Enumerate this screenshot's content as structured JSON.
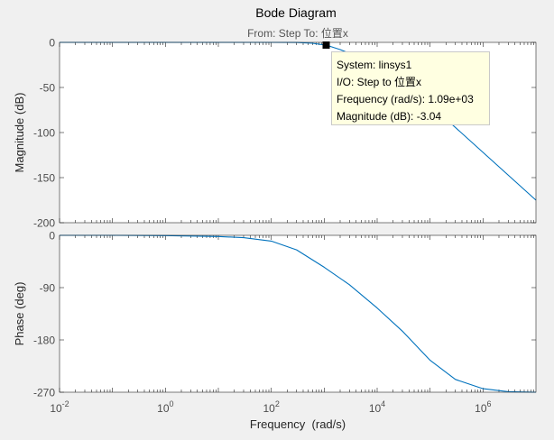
{
  "title": "Bode Diagram",
  "subtitle": "From: Step  To: 位置x",
  "colors": {
    "line": "#0072bd",
    "background": "#f0f0f0",
    "tooltip": "#ffffe1"
  },
  "chart_data": [
    {
      "type": "line",
      "name": "magnitude",
      "ylabel": "Magnitude (dB)",
      "xscale": "log",
      "xlim": [
        0.01,
        10000000
      ],
      "ylim": [
        -200,
        0
      ],
      "yticks": [
        0,
        -50,
        -100,
        -150,
        -200
      ],
      "ytick_labels": [
        "0",
        "-50",
        "-100",
        "-150",
        "-200"
      ],
      "grid": false,
      "series": [
        {
          "x": [
            0.01,
            0.1,
            1,
            10,
            100,
            300,
            600,
            1000,
            1090,
            2000,
            4000,
            10000,
            100000,
            1000000,
            10000000
          ],
          "y": [
            0,
            0,
            0,
            0,
            0,
            -0.1,
            -1,
            -2.8,
            -3.04,
            -8,
            -15,
            -28,
            -69,
            -122,
            -175
          ]
        }
      ]
    },
    {
      "type": "line",
      "name": "phase",
      "ylabel": "Phase (deg)",
      "xlabel": "Frequency  (rad/s)",
      "xscale": "log",
      "xlim": [
        0.01,
        10000000
      ],
      "ylim": [
        -270,
        0
      ],
      "yticks": [
        0,
        -90,
        -180,
        -270
      ],
      "ytick_labels": [
        "0",
        "-90",
        "-180",
        "-270"
      ],
      "xticks": [
        0.01,
        1,
        100,
        10000,
        1000000
      ],
      "xtick_labels": [
        {
          "base": "10",
          "exp": "-2"
        },
        {
          "base": "10",
          "exp": "0"
        },
        {
          "base": "10",
          "exp": "2"
        },
        {
          "base": "10",
          "exp": "4"
        },
        {
          "base": "10",
          "exp": "6"
        }
      ],
      "grid": false,
      "series": [
        {
          "x": [
            0.01,
            0.1,
            1,
            10,
            30,
            100,
            300,
            1000,
            3000,
            10000,
            30000,
            100000,
            300000,
            1000000,
            3000000,
            10000000
          ],
          "y": [
            0,
            0,
            -0.5,
            -2,
            -4,
            -10,
            -25,
            -55,
            -85,
            -125,
            -165,
            -215,
            -248,
            -264,
            -269,
            -270
          ]
        }
      ]
    }
  ],
  "datatip": {
    "x": 1090,
    "y": -3.04,
    "lines": [
      "System: linsys1",
      "I/O: Step to 位置x",
      "Frequency (rad/s): 1.09e+03",
      "Magnitude (dB): -3.04"
    ]
  }
}
